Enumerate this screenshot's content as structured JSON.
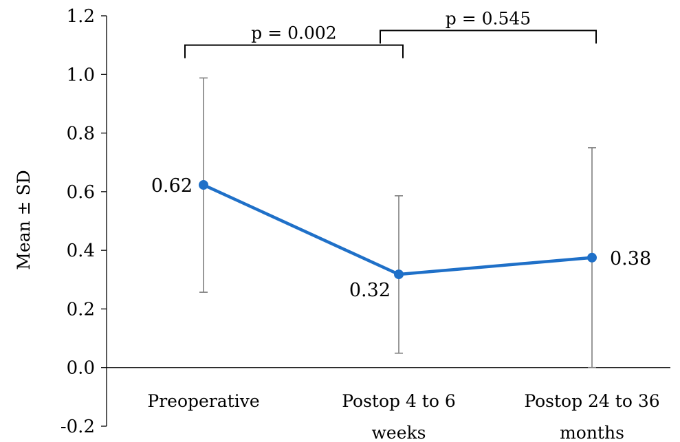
{
  "chart_data": {
    "type": "line",
    "title": "",
    "xlabel": "",
    "ylabel": "Mean ± SD",
    "ylim": [
      -0.2,
      1.2
    ],
    "yticks": [
      "1.2",
      "1.0",
      "0.8",
      "0.6",
      "0.4",
      "0.2",
      "0.0",
      "-0.2"
    ],
    "ytick_values": [
      1.2,
      1.0,
      0.8,
      0.6,
      0.4,
      0.2,
      0.0,
      -0.2
    ],
    "categories": [
      {
        "line1": "Preoperative",
        "line2": ""
      },
      {
        "line1": "Postop 4 to 6",
        "line2": "weeks"
      },
      {
        "line1": "Postop 24 to 36",
        "line2": "months"
      }
    ],
    "series": [
      {
        "values": [
          0.623,
          0.318,
          0.375
        ],
        "error_low": [
          0.257,
          0.049,
          0.0
        ],
        "error_high": [
          0.988,
          0.586,
          0.75
        ],
        "data_labels": [
          "0.62",
          "0.32",
          "0.38"
        ]
      }
    ],
    "comparisons": [
      {
        "from": 0,
        "to": 1,
        "label": "p = 0.002",
        "y": 1.1
      },
      {
        "from": 1,
        "to": 2,
        "label": "p = 0.545",
        "y": 1.15
      }
    ],
    "grid": false,
    "legend": "none",
    "colors": {
      "line": "#1f70c8",
      "error_bar": "#7f7f7f",
      "axis": "#000000"
    }
  }
}
